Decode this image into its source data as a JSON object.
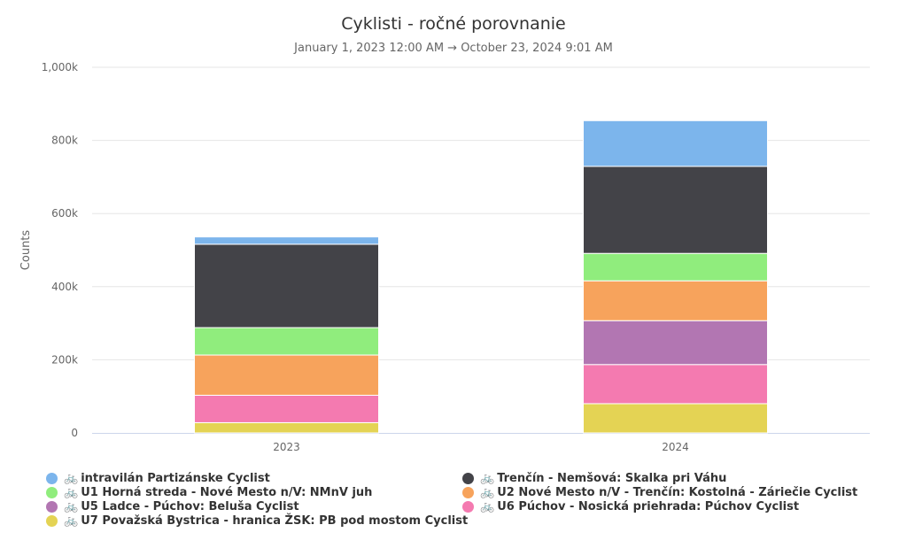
{
  "chart_data": {
    "type": "bar",
    "stacked": true,
    "title": "Cyklisti - ročné porovnanie",
    "subtitle": "January 1, 2023 12:00 AM → October 23, 2024 9:01 AM",
    "ylabel": "Counts",
    "xlabel": "",
    "ylim": [
      0,
      1000000
    ],
    "yticks": [
      0,
      200000,
      400000,
      600000,
      800000,
      1000000
    ],
    "ytick_labels": [
      "0",
      "200k",
      "400k",
      "600k",
      "800k",
      "1,000k"
    ],
    "grid": true,
    "legend_position": "bottom",
    "categories": [
      "2023",
      "2024"
    ],
    "series": [
      {
        "name": "U7 Považská Bystrica - hranica ŽSK: PB pod mostom Cyclist",
        "color": "#e4d354",
        "values": [
          28000,
          80000
        ]
      },
      {
        "name": "U6 Púchov - Nosická priehrada: Púchov Cyclist",
        "color": "#f47ab0",
        "values": [
          75000,
          107000
        ]
      },
      {
        "name": "U5 Ladce - Púchov: Beluša Cyclist",
        "color": "#b276b2",
        "values": [
          0,
          120000
        ]
      },
      {
        "name": "U2 Nové Mesto n/V - Trenčín: Kostolná - Záriečie Cyclist",
        "color": "#f7a35c",
        "values": [
          110000,
          109000
        ]
      },
      {
        "name": "U1 Horná streda - Nové Mesto n/V: NMnV juh",
        "color": "#90ed7d",
        "values": [
          75000,
          75000
        ]
      },
      {
        "name": "Trenčín - Nemšová: Skalka pri Váhu",
        "color": "#434348",
        "values": [
          228000,
          238000
        ]
      },
      {
        "name": "intravilán Partizánske Cyclist",
        "color": "#7cb5ec",
        "values": [
          20000,
          125000
        ]
      }
    ]
  },
  "legend_order": [
    "intravilán Partizánske Cyclist",
    "Trenčín - Nemšová: Skalka pri Váhu",
    "U1 Horná streda - Nové Mesto n/V: NMnV juh",
    "U2 Nové Mesto n/V - Trenčín: Kostolná - Záriečie Cyclist",
    "U5 Ladce - Púchov: Beluša Cyclist",
    "U6 Púchov - Nosická priehrada: Púchov Cyclist",
    "U7 Považská Bystrica - hranica ŽSK: PB pod mostom Cyclist"
  ],
  "legend_icon": "bicycle-icon"
}
